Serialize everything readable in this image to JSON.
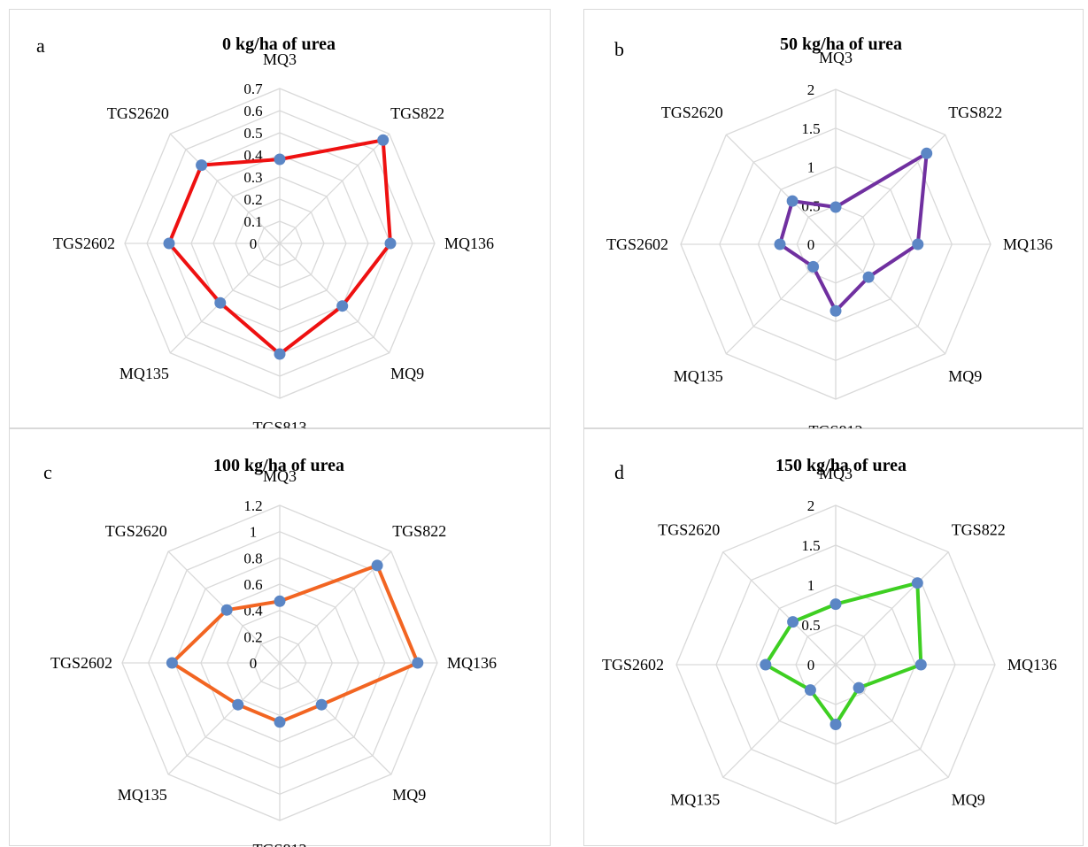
{
  "chart_data": [
    {
      "type": "radar",
      "panel_label": "a",
      "title": "0 kg/ha of urea",
      "categories": [
        "MQ3",
        "TGS822",
        "MQ136",
        "MQ9",
        "TGS813",
        "MQ135",
        "TGS2602",
        "TGS2620"
      ],
      "values": [
        0.38,
        0.66,
        0.5,
        0.4,
        0.5,
        0.38,
        0.5,
        0.5
      ],
      "rmax": 0.7,
      "ticks": [
        "0",
        "0.1",
        "0.2",
        "0.3",
        "0.4",
        "0.5",
        "0.6",
        "0.7"
      ],
      "line_color": "#ee1111",
      "marker_color": "#5b86c5",
      "grid": true
    },
    {
      "type": "radar",
      "panel_label": "b",
      "title": "50 kg/ha of urea",
      "categories": [
        "MQ3",
        "TGS822",
        "MQ136",
        "MQ9",
        "TGS813",
        "MQ135",
        "TGS2602",
        "TGS2620"
      ],
      "values": [
        0.48,
        1.66,
        1.06,
        0.6,
        0.86,
        0.41,
        0.72,
        0.79
      ],
      "rmax": 2,
      "ticks": [
        "0",
        "0.5",
        "1",
        "1.5",
        "2"
      ],
      "line_color": "#7030a0",
      "marker_color": "#5b86c5",
      "grid": true
    },
    {
      "type": "radar",
      "panel_label": "c",
      "title": "100 kg/ha of urea",
      "categories": [
        "MQ3",
        "TGS822",
        "MQ136",
        "MQ9",
        "TGS813",
        "MQ135",
        "TGS2602",
        "TGS2620"
      ],
      "values": [
        0.47,
        1.05,
        1.05,
        0.45,
        0.45,
        0.45,
        0.82,
        0.57
      ],
      "rmax": 1.2,
      "ticks": [
        "0",
        "0.2",
        "0.4",
        "0.6",
        "0.8",
        "1",
        "1.2"
      ],
      "line_color": "#f26522",
      "marker_color": "#5b86c5",
      "grid": true
    },
    {
      "type": "radar",
      "panel_label": "d",
      "title": "150 kg/ha of urea",
      "categories": [
        "MQ3",
        "TGS822",
        "MQ136",
        "MQ9",
        "TGS813",
        "MQ135",
        "TGS2602",
        "TGS2620"
      ],
      "values": [
        0.76,
        1.45,
        1.07,
        0.41,
        0.75,
        0.45,
        0.88,
        0.76
      ],
      "rmax": 2,
      "ticks": [
        "0",
        "0.5",
        "1",
        "1.5",
        "2"
      ],
      "line_color": "#3ecf22",
      "marker_color": "#5b86c5",
      "grid": true
    }
  ]
}
